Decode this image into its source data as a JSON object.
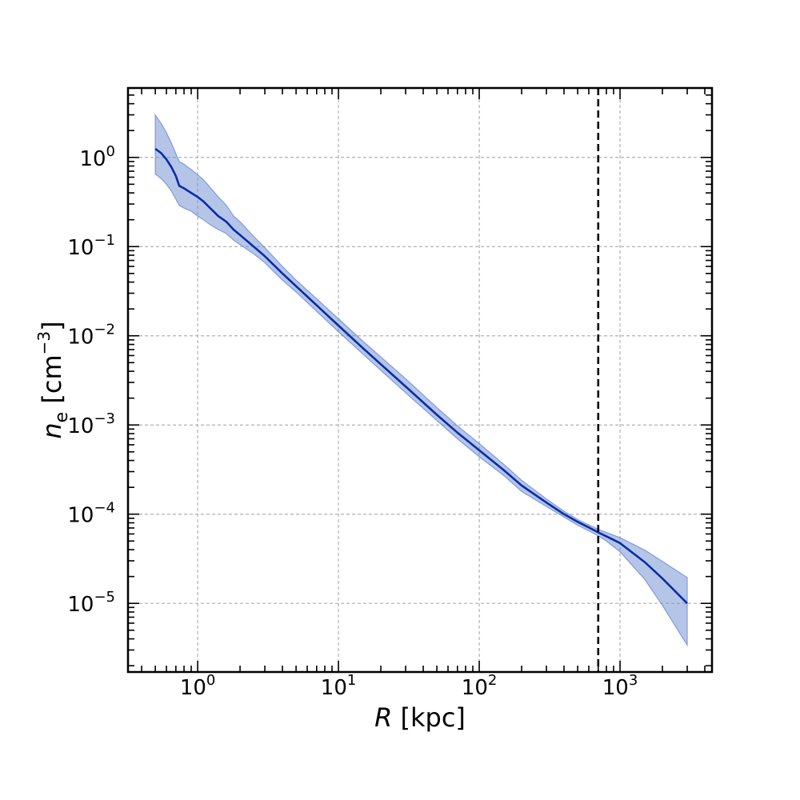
{
  "chart_data": {
    "type": "line",
    "title": "",
    "xlabel": {
      "var": "R",
      "unit": " [kpc]"
    },
    "ylabel": {
      "var": "n",
      "sub": "e",
      "unit_pre": " [cm",
      "unit_exp": "−3",
      "unit_post": "]"
    },
    "xscale": "log",
    "yscale": "log",
    "xlim": [
      0.32,
      4500
    ],
    "ylim": [
      1.7e-06,
      6.0
    ],
    "grid": true,
    "legend": "none",
    "colors": {
      "line": "#0a2ca8",
      "band": "#6b8bd1",
      "vline": "#000000",
      "grid": "#b0b0b0"
    },
    "x_ticks": [
      {
        "base": "10",
        "exp": "0",
        "value": 1
      },
      {
        "base": "10",
        "exp": "1",
        "value": 10
      },
      {
        "base": "10",
        "exp": "2",
        "value": 100
      },
      {
        "base": "10",
        "exp": "3",
        "value": 1000
      }
    ],
    "y_ticks": [
      {
        "base": "10",
        "exp": "0",
        "value": 1
      },
      {
        "base": "10",
        "exp": "−1",
        "value": 0.1
      },
      {
        "base": "10",
        "exp": "−2",
        "value": 0.01
      },
      {
        "base": "10",
        "exp": "−3",
        "value": 0.001
      },
      {
        "base": "10",
        "exp": "−4",
        "value": 0.0001
      },
      {
        "base": "10",
        "exp": "−5",
        "value": 1e-05
      }
    ],
    "vline": {
      "x": 700,
      "style": "dashed"
    },
    "series": [
      {
        "x": [
          0.5,
          0.55,
          0.6,
          0.65,
          0.7,
          0.74,
          0.8,
          0.9,
          1.0,
          1.1,
          1.2,
          1.4,
          1.6,
          1.8,
          2.0,
          2.5,
          3,
          4,
          5,
          7,
          10,
          15,
          20,
          30,
          50,
          70,
          100,
          150,
          200,
          300,
          400,
          500,
          600,
          700,
          800,
          1000,
          1500,
          2000,
          3000
        ],
        "y": [
          1.25,
          1.12,
          0.95,
          0.78,
          0.62,
          0.48,
          0.45,
          0.4,
          0.36,
          0.32,
          0.28,
          0.22,
          0.19,
          0.155,
          0.135,
          0.1,
          0.078,
          0.05,
          0.036,
          0.022,
          0.013,
          0.0072,
          0.0048,
          0.0027,
          0.0013,
          0.00082,
          0.00052,
          0.00031,
          0.00021,
          0.000135,
          0.0001,
          8.2e-05,
          7.1e-05,
          6.25e-05,
          5.65e-05,
          4.75e-05,
          2.9e-05,
          1.9e-05,
          1e-05
        ],
        "upper": [
          3.0,
          2.4,
          1.9,
          1.45,
          1.1,
          0.9,
          0.84,
          0.73,
          0.64,
          0.56,
          0.48,
          0.36,
          0.29,
          0.22,
          0.19,
          0.13,
          0.097,
          0.06,
          0.042,
          0.026,
          0.0155,
          0.0086,
          0.0058,
          0.0033,
          0.00157,
          0.00098,
          0.00062,
          0.00036,
          0.00024,
          0.000148,
          0.000108,
          8.7e-05,
          7.6e-05,
          6.75e-05,
          6.25e-05,
          5.45e-05,
          3.95e-05,
          2.95e-05,
          1.95e-05
        ],
        "lower": [
          0.65,
          0.58,
          0.5,
          0.42,
          0.34,
          0.29,
          0.27,
          0.25,
          0.22,
          0.2,
          0.18,
          0.155,
          0.14,
          0.118,
          0.105,
          0.083,
          0.066,
          0.042,
          0.031,
          0.0188,
          0.0111,
          0.0062,
          0.0041,
          0.0023,
          0.00112,
          0.0007,
          0.00044,
          0.00027,
          0.00018,
          0.000122,
          9.3e-05,
          7.5e-05,
          6.5e-05,
          5.7e-05,
          5e-05,
          3.8e-05,
          1.85e-05,
          9.5e-06,
          3.4e-06
        ]
      }
    ]
  }
}
